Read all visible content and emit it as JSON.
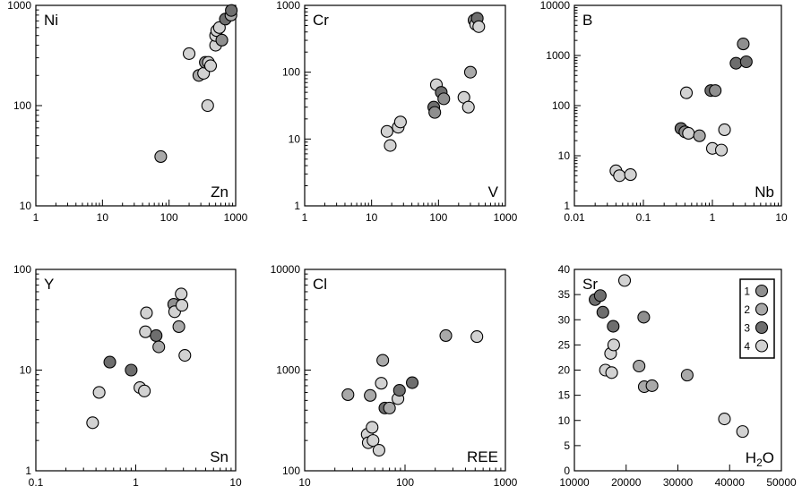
{
  "colors": {
    "1": "#8f8f8f",
    "2": "#a9a9a9",
    "3": "#6e6e6e",
    "4": "#d2d2d2"
  },
  "legend": {
    "items": [
      {
        "label": "1",
        "group": "1"
      },
      {
        "label": "2",
        "group": "2"
      },
      {
        "label": "3",
        "group": "3"
      },
      {
        "label": "4",
        "group": "4"
      }
    ]
  },
  "chart_data": [
    {
      "type": "scatter",
      "title": "Ni",
      "xlabel": "Zn",
      "ylabel": "",
      "xscale": "log",
      "yscale": "log",
      "xlim": [
        1,
        1000
      ],
      "ylim": [
        10,
        1000
      ],
      "xticks": [
        "1",
        "10",
        "100",
        "1000"
      ],
      "yticks": [
        "10",
        "100",
        "1000"
      ],
      "points": [
        {
          "x": 75,
          "y": 31,
          "g": "2"
        },
        {
          "x": 200,
          "y": 330,
          "g": "4"
        },
        {
          "x": 280,
          "y": 200,
          "g": "2"
        },
        {
          "x": 330,
          "y": 210,
          "g": "4"
        },
        {
          "x": 350,
          "y": 270,
          "g": "1"
        },
        {
          "x": 390,
          "y": 270,
          "g": "4"
        },
        {
          "x": 420,
          "y": 250,
          "g": "4"
        },
        {
          "x": 380,
          "y": 100,
          "g": "4"
        },
        {
          "x": 500,
          "y": 400,
          "g": "4"
        },
        {
          "x": 500,
          "y": 500,
          "g": "4"
        },
        {
          "x": 520,
          "y": 560,
          "g": "4"
        },
        {
          "x": 570,
          "y": 600,
          "g": "4"
        },
        {
          "x": 620,
          "y": 450,
          "g": "1"
        },
        {
          "x": 700,
          "y": 730,
          "g": "3"
        },
        {
          "x": 850,
          "y": 800,
          "g": "2"
        },
        {
          "x": 860,
          "y": 890,
          "g": "3"
        }
      ]
    },
    {
      "type": "scatter",
      "title": "Cr",
      "xlabel": "V",
      "ylabel": "",
      "xscale": "log",
      "yscale": "log",
      "xlim": [
        1,
        1000
      ],
      "ylim": [
        1,
        1000
      ],
      "xticks": [
        "1",
        "10",
        "100",
        "1000"
      ],
      "yticks": [
        "1",
        "10",
        "100",
        "1000"
      ],
      "points": [
        {
          "x": 17,
          "y": 13,
          "g": "4"
        },
        {
          "x": 19,
          "y": 8,
          "g": "4"
        },
        {
          "x": 25,
          "y": 15,
          "g": "4"
        },
        {
          "x": 27,
          "y": 18,
          "g": "4"
        },
        {
          "x": 85,
          "y": 30,
          "g": "3"
        },
        {
          "x": 88,
          "y": 25,
          "g": "1"
        },
        {
          "x": 93,
          "y": 65,
          "g": "4"
        },
        {
          "x": 110,
          "y": 50,
          "g": "3"
        },
        {
          "x": 120,
          "y": 40,
          "g": "1"
        },
        {
          "x": 240,
          "y": 42,
          "g": "4"
        },
        {
          "x": 280,
          "y": 30,
          "g": "4"
        },
        {
          "x": 300,
          "y": 100,
          "g": "2"
        },
        {
          "x": 340,
          "y": 600,
          "g": "1"
        },
        {
          "x": 360,
          "y": 520,
          "g": "4"
        },
        {
          "x": 380,
          "y": 640,
          "g": "3"
        },
        {
          "x": 400,
          "y": 480,
          "g": "4"
        }
      ]
    },
    {
      "type": "scatter",
      "title": "B",
      "xlabel": "Nb",
      "ylabel": "",
      "xscale": "log",
      "yscale": "log",
      "xlim": [
        0.01,
        10
      ],
      "ylim": [
        1,
        10000
      ],
      "xticks": [
        "0.01",
        "0.1",
        "1",
        "10"
      ],
      "yticks": [
        "1",
        "10",
        "100",
        "1000",
        "10000"
      ],
      "points": [
        {
          "x": 0.04,
          "y": 5,
          "g": "4"
        },
        {
          "x": 0.045,
          "y": 4,
          "g": "4"
        },
        {
          "x": 0.065,
          "y": 4.2,
          "g": "4"
        },
        {
          "x": 0.35,
          "y": 35,
          "g": "3"
        },
        {
          "x": 0.4,
          "y": 30,
          "g": "1"
        },
        {
          "x": 0.42,
          "y": 180,
          "g": "4"
        },
        {
          "x": 0.45,
          "y": 28,
          "g": "4"
        },
        {
          "x": 0.65,
          "y": 25,
          "g": "2"
        },
        {
          "x": 0.95,
          "y": 200,
          "g": "3"
        },
        {
          "x": 1.1,
          "y": 200,
          "g": "1"
        },
        {
          "x": 1.0,
          "y": 14,
          "g": "4"
        },
        {
          "x": 1.35,
          "y": 13,
          "g": "4"
        },
        {
          "x": 1.5,
          "y": 33,
          "g": "4"
        },
        {
          "x": 2.2,
          "y": 700,
          "g": "3"
        },
        {
          "x": 2.8,
          "y": 1700,
          "g": "1"
        },
        {
          "x": 3.1,
          "y": 750,
          "g": "3"
        }
      ]
    },
    {
      "type": "scatter",
      "title": "Y",
      "xlabel": "Sn",
      "ylabel": "",
      "xscale": "log",
      "yscale": "log",
      "xlim": [
        0.1,
        10
      ],
      "ylim": [
        1,
        100
      ],
      "xticks": [
        "0.1",
        "1",
        "10"
      ],
      "yticks": [
        "1",
        "10",
        "100"
      ],
      "points": [
        {
          "x": 0.37,
          "y": 3,
          "g": "4"
        },
        {
          "x": 0.43,
          "y": 6,
          "g": "4"
        },
        {
          "x": 0.55,
          "y": 12,
          "g": "3"
        },
        {
          "x": 0.9,
          "y": 10,
          "g": "3"
        },
        {
          "x": 1.1,
          "y": 6.7,
          "g": "4"
        },
        {
          "x": 1.22,
          "y": 6.2,
          "g": "4"
        },
        {
          "x": 1.25,
          "y": 24,
          "g": "4"
        },
        {
          "x": 1.28,
          "y": 37,
          "g": "4"
        },
        {
          "x": 1.6,
          "y": 22,
          "g": "3"
        },
        {
          "x": 1.7,
          "y": 17,
          "g": "2"
        },
        {
          "x": 2.4,
          "y": 45,
          "g": "1"
        },
        {
          "x": 2.45,
          "y": 38,
          "g": "4"
        },
        {
          "x": 2.7,
          "y": 27,
          "g": "2"
        },
        {
          "x": 2.85,
          "y": 57,
          "g": "4"
        },
        {
          "x": 2.9,
          "y": 44,
          "g": "4"
        },
        {
          "x": 3.1,
          "y": 14,
          "g": "4"
        }
      ]
    },
    {
      "type": "scatter",
      "title": "Cl",
      "xlabel": "REE",
      "ylabel": "",
      "xscale": "log",
      "yscale": "log",
      "xlim": [
        10,
        1000
      ],
      "ylim": [
        100,
        10000
      ],
      "xticks": [
        "10",
        "100",
        "1000"
      ],
      "yticks": [
        "100",
        "1000",
        "10000"
      ],
      "points": [
        {
          "x": 27,
          "y": 570,
          "g": "2"
        },
        {
          "x": 42,
          "y": 230,
          "g": "4"
        },
        {
          "x": 43,
          "y": 190,
          "g": "4"
        },
        {
          "x": 45,
          "y": 560,
          "g": "2"
        },
        {
          "x": 47,
          "y": 270,
          "g": "4"
        },
        {
          "x": 48,
          "y": 200,
          "g": "4"
        },
        {
          "x": 55,
          "y": 160,
          "g": "4"
        },
        {
          "x": 58,
          "y": 740,
          "g": "4"
        },
        {
          "x": 60,
          "y": 1250,
          "g": "2"
        },
        {
          "x": 63,
          "y": 420,
          "g": "3"
        },
        {
          "x": 70,
          "y": 420,
          "g": "2"
        },
        {
          "x": 85,
          "y": 520,
          "g": "4"
        },
        {
          "x": 88,
          "y": 630,
          "g": "3"
        },
        {
          "x": 118,
          "y": 750,
          "g": "3"
        },
        {
          "x": 255,
          "y": 2200,
          "g": "2"
        },
        {
          "x": 520,
          "y": 2150,
          "g": "4"
        }
      ]
    },
    {
      "type": "scatter",
      "title": "Sr",
      "xlabel": "H2O",
      "ylabel": "",
      "xscale": "linear",
      "yscale": "linear",
      "xlim": [
        10000,
        50000
      ],
      "ylim": [
        0,
        40
      ],
      "xticks": [
        "10000",
        "20000",
        "30000",
        "40000",
        "50000"
      ],
      "yticks": [
        "0",
        "5",
        "10",
        "15",
        "20",
        "25",
        "30",
        "35",
        "40"
      ],
      "points": [
        {
          "x": 14000,
          "y": 34,
          "g": "3"
        },
        {
          "x": 15000,
          "y": 34.8,
          "g": "3"
        },
        {
          "x": 15500,
          "y": 31.5,
          "g": "3"
        },
        {
          "x": 16000,
          "y": 20,
          "g": "4"
        },
        {
          "x": 17000,
          "y": 23.3,
          "g": "4"
        },
        {
          "x": 17200,
          "y": 19.5,
          "g": "4"
        },
        {
          "x": 17500,
          "y": 28.7,
          "g": "3"
        },
        {
          "x": 17600,
          "y": 25,
          "g": "4"
        },
        {
          "x": 19700,
          "y": 37.8,
          "g": "4"
        },
        {
          "x": 22500,
          "y": 20.8,
          "g": "2"
        },
        {
          "x": 23400,
          "y": 30.5,
          "g": "1"
        },
        {
          "x": 23500,
          "y": 16.7,
          "g": "2"
        },
        {
          "x": 25000,
          "y": 16.9,
          "g": "2"
        },
        {
          "x": 31800,
          "y": 19,
          "g": "2"
        },
        {
          "x": 39000,
          "y": 10.3,
          "g": "4"
        },
        {
          "x": 42500,
          "y": 7.8,
          "g": "4"
        }
      ]
    }
  ]
}
